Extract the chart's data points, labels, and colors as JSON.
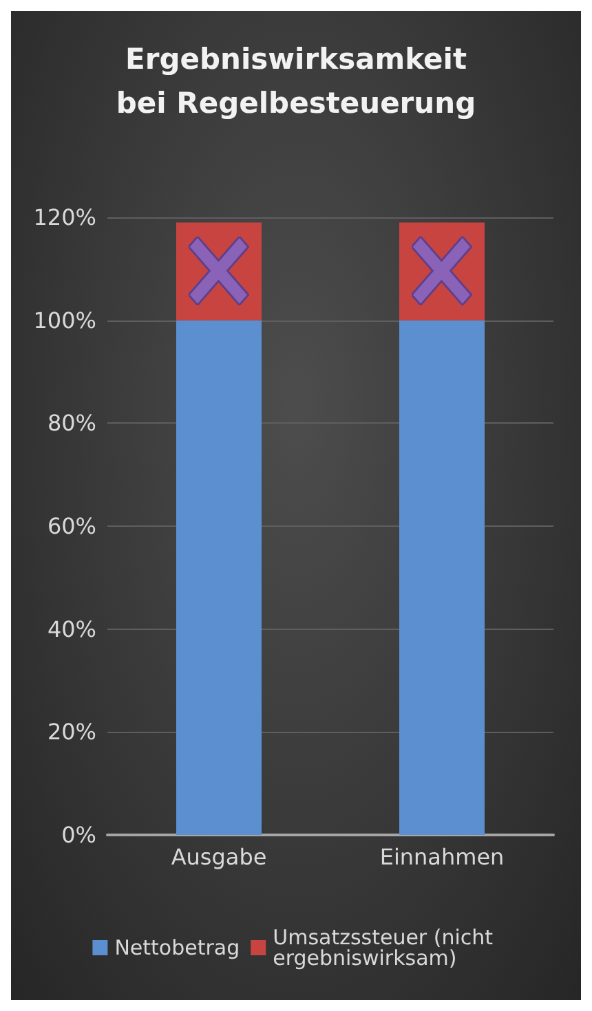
{
  "chart_data": {
    "type": "bar",
    "title": "Ergebniswirksamkeit\nbei Regelbesteuerung",
    "categories": [
      "Ausgabe",
      "Einnahmen"
    ],
    "series": [
      {
        "name": "Nettobetrag",
        "color": "#5b8fd0",
        "values": [
          100,
          100
        ]
      },
      {
        "name": "Umsatzssteuer (nicht ergebniswirksam)",
        "color": "#c84440",
        "values": [
          19,
          19
        ]
      }
    ],
    "stacked": true,
    "ylim": [
      0,
      120
    ],
    "yticks": [
      {
        "value": 0,
        "label": "0%"
      },
      {
        "value": 20,
        "label": "20%"
      },
      {
        "value": 40,
        "label": "40%"
      },
      {
        "value": 60,
        "label": "60%"
      },
      {
        "value": 80,
        "label": "80%"
      },
      {
        "value": 100,
        "label": "100%"
      },
      {
        "value": 120,
        "label": "120%"
      }
    ],
    "grid": "y",
    "legend": "bottom"
  }
}
